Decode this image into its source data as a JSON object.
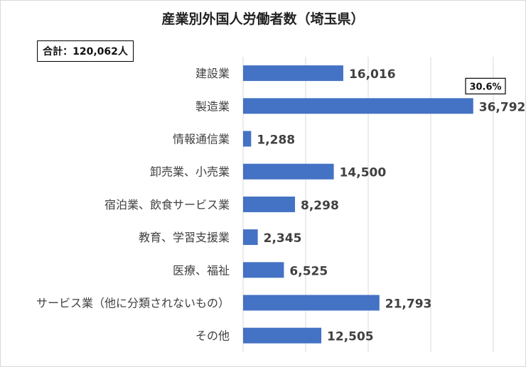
{
  "title": "産業別外国人労働者数（埼玉県）",
  "total_note": "合計：120,062人",
  "highlight_note": "30.6%",
  "colors": {
    "bar": "#4472C4",
    "gridline": "#d9d9d9",
    "text": "#404040"
  },
  "chart_data": {
    "type": "bar",
    "orientation": "horizontal",
    "title": "産業別外国人労働者数（埼玉県）",
    "xlabel": "",
    "ylabel": "",
    "xlim": [
      0,
      40000
    ],
    "grid": "vertical",
    "legend": "none",
    "categories": [
      "建設業",
      "製造業",
      "情報通信業",
      "卸売業、小売業",
      "宿泊業、飲食サービス業",
      "教育、学習支援業",
      "医療、福祉",
      "サービス業（他に分類されないもの）",
      "その他"
    ],
    "values": [
      16016,
      36792,
      1288,
      14500,
      8298,
      2345,
      6525,
      21793,
      12505
    ],
    "data_labels": [
      "16,016",
      "36,792",
      "1,288",
      "14,500",
      "8,298",
      "2,345",
      "6,525",
      "21,793",
      "12,505"
    ],
    "annotations": [
      {
        "category": "製造業",
        "text": "30.6%"
      }
    ]
  }
}
